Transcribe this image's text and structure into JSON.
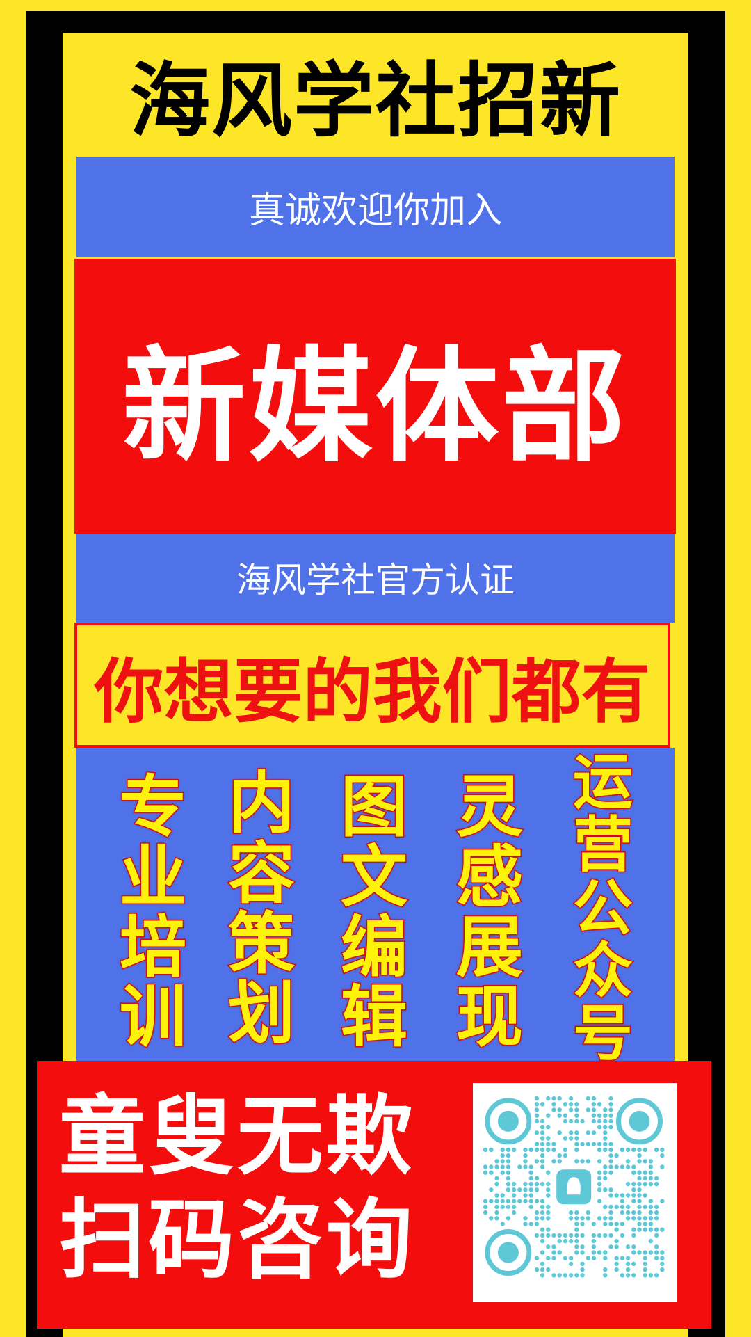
{
  "poster": {
    "title": "海风学社招新",
    "welcome": "真诚欢迎你加入",
    "department": "新媒体部",
    "certification": "海风学社官方认证",
    "slogan": "你想要的我们都有",
    "features": [
      {
        "chars": [
          "专",
          "业",
          "培",
          "训"
        ]
      },
      {
        "chars": [
          "内",
          "容",
          "策",
          "划"
        ]
      },
      {
        "chars": [
          "图",
          "文",
          "编",
          "辑"
        ]
      },
      {
        "chars": [
          "灵",
          "感",
          "展",
          "现"
        ]
      },
      {
        "chars": [
          "运",
          "营",
          "公",
          "众",
          "号"
        ]
      }
    ],
    "cta_line1": "童叟无欺",
    "cta_line2": "扫码咨询"
  },
  "qr_code": {
    "icon": "qq-penguin-icon",
    "dot_color": "#5ec8d6"
  },
  "colors": {
    "yellow": "#fde528",
    "black": "#000000",
    "blue": "#4f72e9",
    "red": "#f30d0d",
    "feature_text": "#fff20a",
    "feature_outline": "#d21414"
  }
}
